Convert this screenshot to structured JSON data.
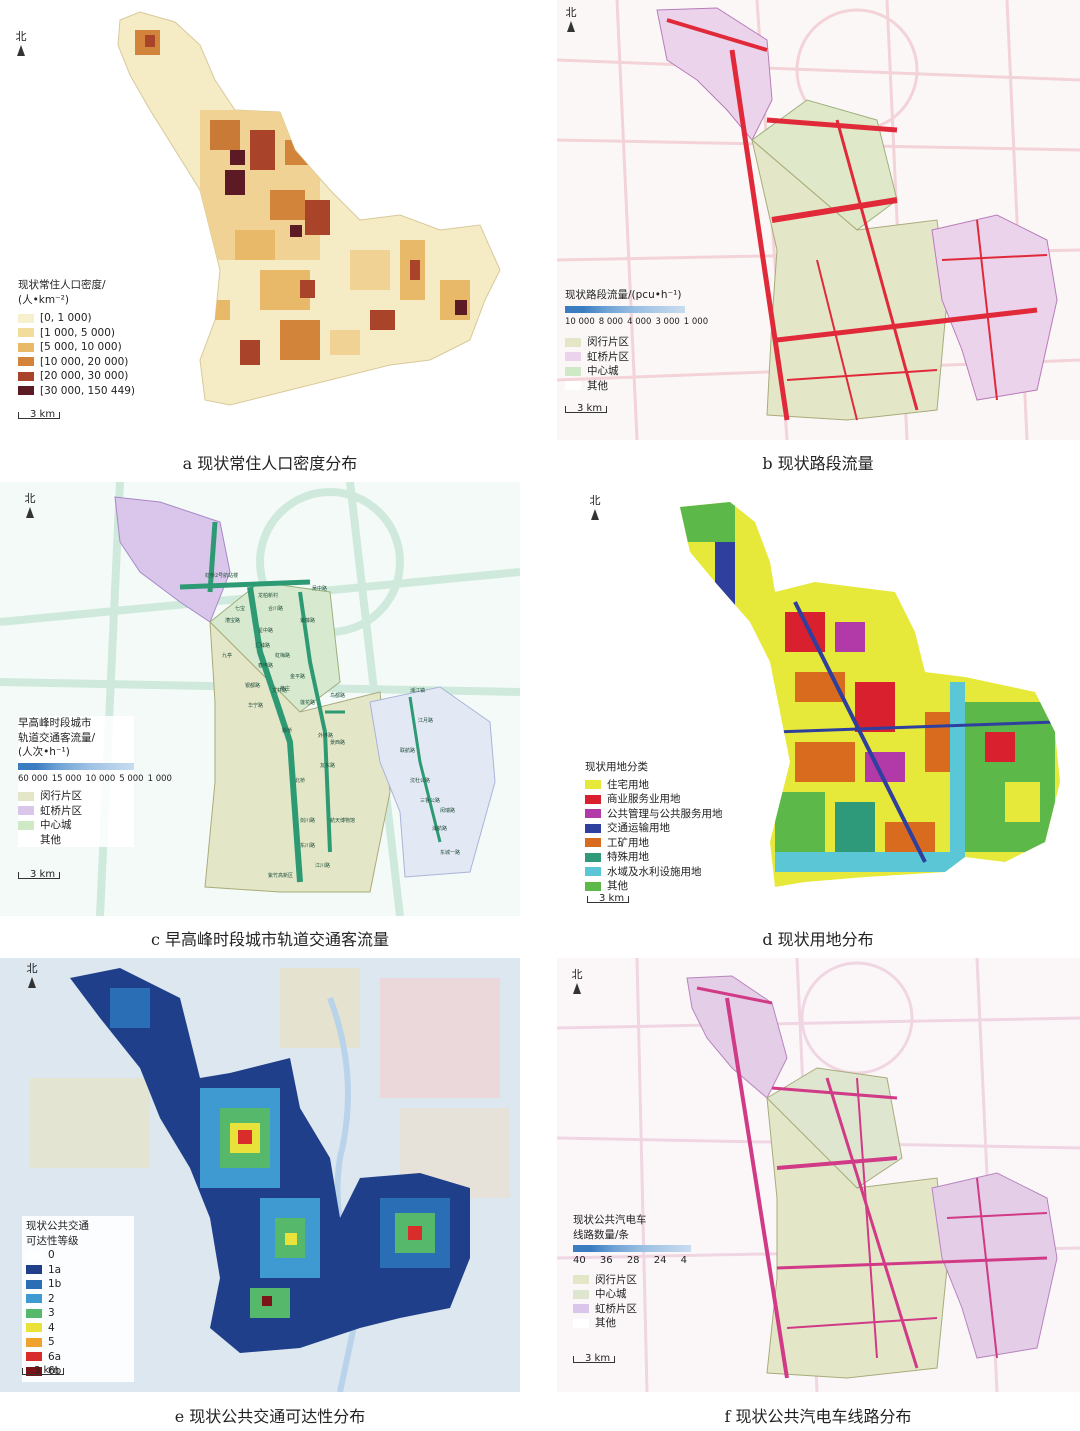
{
  "panels": {
    "a": {
      "north": "北",
      "scale": "3 km",
      "caption": "a 现状常住人口密度分布",
      "legend_title": [
        "现状常住人口密度/",
        "(人•km⁻²)"
      ],
      "legend": [
        {
          "label": "[0, 1 000)",
          "color": "#f7f0cf"
        },
        {
          "label": "[1 000, 5 000)",
          "color": "#f1dc9c"
        },
        {
          "label": "[5 000, 10 000)",
          "color": "#e9b96a"
        },
        {
          "label": "[10 000, 20 000)",
          "color": "#d2843b"
        },
        {
          "label": "[20 000, 30 000)",
          "color": "#a9442a"
        },
        {
          "label": "[30 000, 150 449)",
          "color": "#5c1a24"
        }
      ]
    },
    "b": {
      "north": "北",
      "scale": "3 km",
      "caption": "b 现状路段流量",
      "legend_title": [
        "现状路段流量/(pcu•h⁻¹)"
      ],
      "ticks": [
        "10 000",
        "8 000",
        "4 000",
        "3 000",
        "1 000"
      ],
      "legend": [
        {
          "label": "闵行片区",
          "color": "#e4e6c8"
        },
        {
          "label": "虹桥片区",
          "color": "#ecd3ec"
        },
        {
          "label": "中心城",
          "color": "#cfe9c6"
        },
        {
          "label": "其他",
          "color": "#ffffff"
        }
      ]
    },
    "c": {
      "north": "北",
      "scale": "3 km",
      "caption": "c 早高峰时段城市轨道交通客流量",
      "legend_title": [
        "早高峰时段城市",
        "轨道交通客流量/",
        "(人次•h⁻¹)"
      ],
      "ticks": [
        "60 000",
        "15 000",
        "10 000",
        "5 000",
        "1 000"
      ],
      "legend": [
        {
          "label": "闵行片区",
          "color": "#e4e6c8"
        },
        {
          "label": "虹桥片区",
          "color": "#d9c6ea"
        },
        {
          "label": "中心城",
          "color": "#cfe9c6"
        },
        {
          "label": "其他",
          "color": "#ffffff"
        }
      ],
      "stations": [
        "虹桥2号航站楼",
        "龙柏新村",
        "吴中路",
        "紫藤路",
        "合川路",
        "星中路",
        "七宝",
        "漕宝路",
        "九亭",
        "春申路",
        "银都路",
        "虹梅路",
        "莘庄",
        "颛桥",
        "北桥",
        "剑川路",
        "东川路",
        "航天博物馆",
        "江川路",
        "紫竹高新区",
        "鸟都路",
        "浦江镇",
        "江月路",
        "联航路",
        "沈杜公路",
        "三鲁公路",
        "闵瑞路",
        "浦航路",
        "东城一路",
        "汇臻路",
        "华宁路",
        "文井路",
        "金平路",
        "莲花路",
        "外环路",
        "景西路",
        "友东路"
      ]
    },
    "d": {
      "north": "北",
      "scale": "3 km",
      "caption": "d 现状用地分布",
      "legend_title": [
        "现状用地分类"
      ],
      "legend": [
        {
          "label": "住宅用地",
          "color": "#e6e83a"
        },
        {
          "label": "商业服务业用地",
          "color": "#d9202e"
        },
        {
          "label": "公共管理与公共服务用地",
          "color": "#b23aa8"
        },
        {
          "label": "交通运输用地",
          "color": "#2e3f9e"
        },
        {
          "label": "工矿用地",
          "color": "#d96b1e"
        },
        {
          "label": "特殊用地",
          "color": "#2e9a7a"
        },
        {
          "label": "水域及水利设施用地",
          "color": "#5bc7d6"
        },
        {
          "label": "其他",
          "color": "#5db84a"
        }
      ]
    },
    "e": {
      "north": "北",
      "scale": "3 km",
      "caption": "e 现状公共交通可达性分布",
      "legend_title": [
        "现状公共交通",
        "可达性等级"
      ],
      "legend": [
        {
          "label": "0",
          "color": "#ffffff"
        },
        {
          "label": "1a",
          "color": "#1f3f8a"
        },
        {
          "label": "1b",
          "color": "#2a6eb5"
        },
        {
          "label": "2",
          "color": "#3e9ad0"
        },
        {
          "label": "3",
          "color": "#56b86a"
        },
        {
          "label": "4",
          "color": "#e8e23a"
        },
        {
          "label": "5",
          "color": "#f0a22e"
        },
        {
          "label": "6a",
          "color": "#d92d2b"
        },
        {
          "label": "6b",
          "color": "#7a1418"
        }
      ]
    },
    "f": {
      "north": "北",
      "scale": "3 km",
      "caption": "f 现状公共汽电车线路分布",
      "legend_title": [
        "现状公共汽电车",
        "线路数量/条"
      ],
      "ticks": [
        "40",
        "36",
        "28",
        "24",
        "4"
      ],
      "legend": [
        {
          "label": "闵行片区",
          "color": "#e4e6c8"
        },
        {
          "label": "中心城",
          "color": "#dfe6d0"
        },
        {
          "label": "虹桥片区",
          "color": "#d9c6ea"
        },
        {
          "label": "其他",
          "color": "#ffffff"
        }
      ]
    }
  }
}
